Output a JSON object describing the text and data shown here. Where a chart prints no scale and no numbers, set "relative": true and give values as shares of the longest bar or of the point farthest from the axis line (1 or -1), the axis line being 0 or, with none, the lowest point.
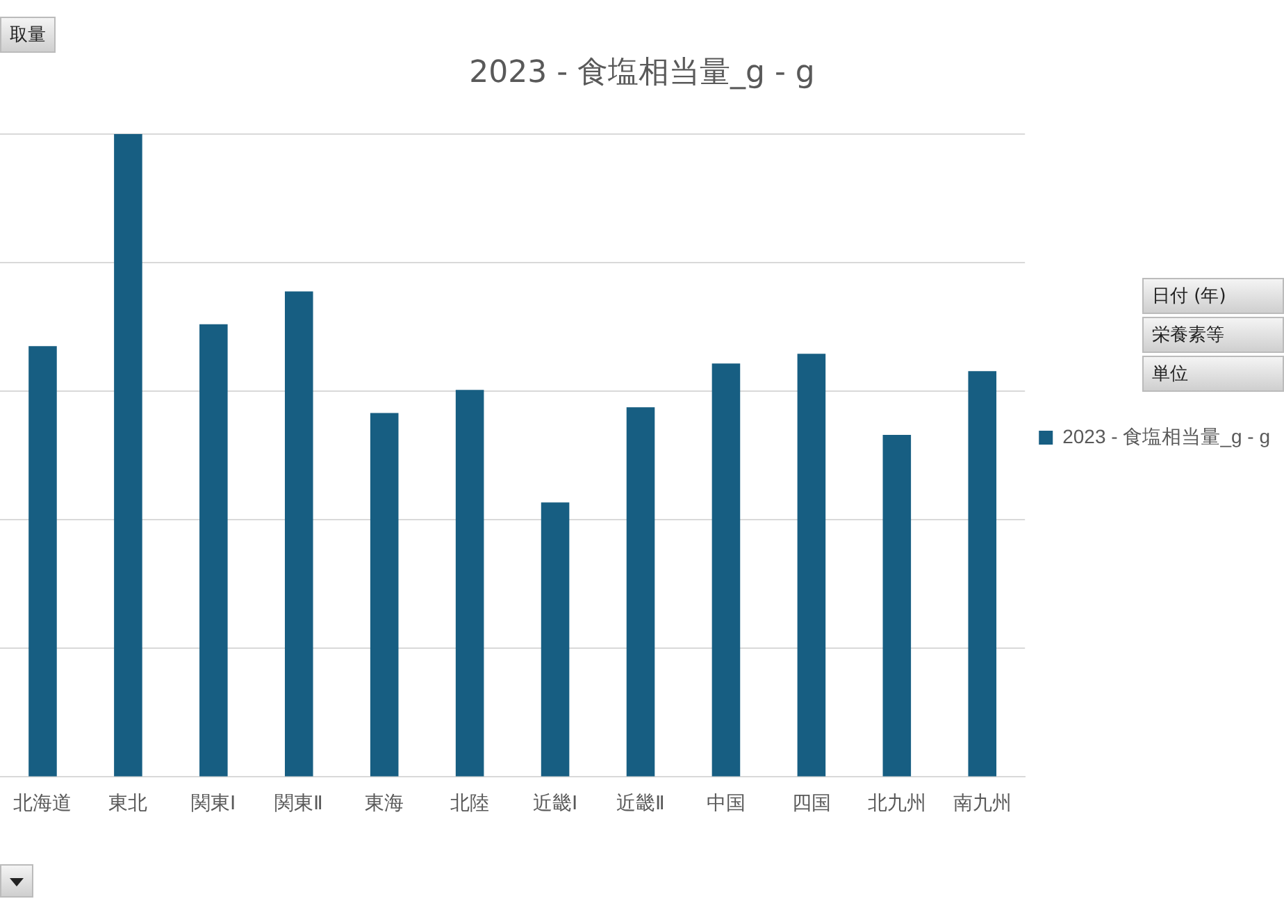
{
  "chart_data": {
    "type": "bar",
    "title": "2023 - 食塩相当量_g - g",
    "relative": true,
    "grid": "y",
    "legend": "right",
    "categories": [
      "北海道",
      "東北",
      "関東Ⅰ",
      "関東Ⅱ",
      "東海",
      "北陸",
      "近畿Ⅰ",
      "近畿Ⅱ",
      "中国",
      "四国",
      "北九州",
      "南九州"
    ],
    "series": [
      {
        "name": "2023 - 食塩相当量_g - g",
        "color": "#175e82",
        "values": [
          0.67,
          1,
          0.704,
          0.755,
          0.566,
          0.602,
          0.427,
          0.575,
          0.643,
          0.658,
          0.532,
          0.631
        ]
      }
    ],
    "annotations": [
      "取量",
      "日付 (年)",
      "栄養素等",
      "単位"
    ]
  }
}
